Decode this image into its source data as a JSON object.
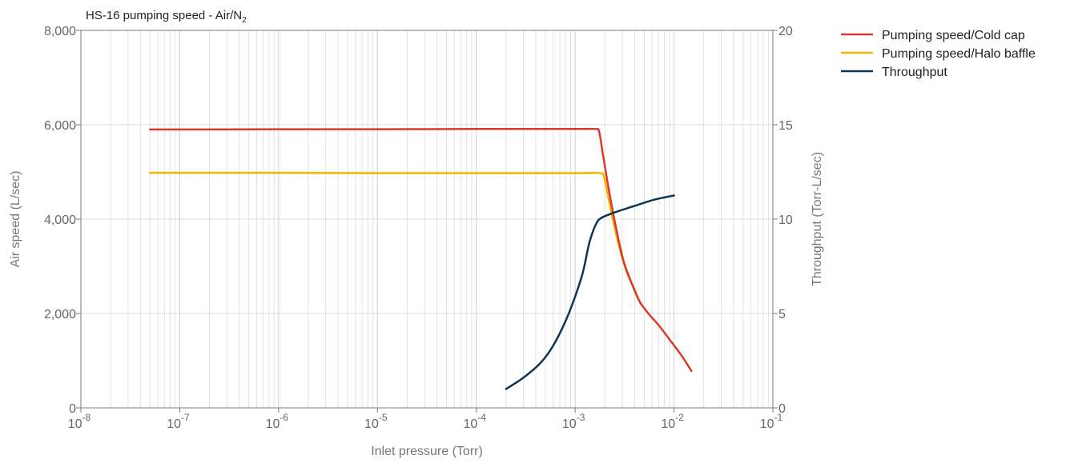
{
  "chart_data": {
    "type": "line",
    "title_main": "HS-16 pumping speed - Air/N",
    "title_subscript": "2",
    "xlabel": "Inlet pressure (Torr)",
    "ylabel": "Air speed (L/sec)",
    "y2label": "Throughput (Torr-L/sec)",
    "x_scale": "log",
    "xlim": [
      1e-08,
      0.1
    ],
    "ylim": [
      0,
      8000
    ],
    "y2lim": [
      0,
      20
    ],
    "x_ticks": [
      {
        "base": "10",
        "exp": "-8",
        "value": 1e-08
      },
      {
        "base": "10",
        "exp": "-7",
        "value": 1e-07
      },
      {
        "base": "10",
        "exp": "-6",
        "value": 1e-06
      },
      {
        "base": "10",
        "exp": "-5",
        "value": 1e-05
      },
      {
        "base": "10",
        "exp": "-4",
        "value": 0.0001
      },
      {
        "base": "10",
        "exp": "-3",
        "value": 0.001
      },
      {
        "base": "10",
        "exp": "-2",
        "value": 0.01
      },
      {
        "base": "10",
        "exp": "-1",
        "value": 0.1
      }
    ],
    "y_ticks": [
      {
        "label": "0",
        "value": 0
      },
      {
        "label": "2,000",
        "value": 2000
      },
      {
        "label": "4,000",
        "value": 4000
      },
      {
        "label": "6,000",
        "value": 6000
      },
      {
        "label": "8,000",
        "value": 8000
      }
    ],
    "y2_ticks": [
      {
        "label": "0",
        "value": 0
      },
      {
        "label": "5",
        "value": 5
      },
      {
        "label": "10",
        "value": 10
      },
      {
        "label": "15",
        "value": 15
      },
      {
        "label": "20",
        "value": 20
      }
    ],
    "grid": true,
    "legend_position": "right-top",
    "series": [
      {
        "name": "Pumping speed/Cold cap",
        "color": "#d93a2b",
        "axis": "left",
        "points": [
          [
            5e-08,
            5900
          ],
          [
            1e-07,
            5900
          ],
          [
            1e-06,
            5905
          ],
          [
            1e-05,
            5905
          ],
          [
            0.0001,
            5910
          ],
          [
            0.001,
            5910
          ],
          [
            0.0016,
            5910
          ],
          [
            0.00175,
            5850
          ],
          [
            0.0019,
            5400
          ],
          [
            0.0022,
            4600
          ],
          [
            0.0026,
            3800
          ],
          [
            0.0031,
            3100
          ],
          [
            0.0038,
            2600
          ],
          [
            0.0045,
            2250
          ],
          [
            0.0055,
            2000
          ],
          [
            0.007,
            1750
          ],
          [
            0.009,
            1450
          ],
          [
            0.012,
            1100
          ],
          [
            0.015,
            780
          ]
        ]
      },
      {
        "name": "Pumping speed/Halo baffle",
        "color": "#f5b400",
        "axis": "left",
        "points": [
          [
            5e-08,
            4980
          ],
          [
            1e-07,
            4980
          ],
          [
            1e-06,
            4980
          ],
          [
            1e-05,
            4975
          ],
          [
            0.0001,
            4975
          ],
          [
            0.001,
            4975
          ],
          [
            0.0018,
            4975
          ],
          [
            0.00195,
            4900
          ],
          [
            0.0021,
            4600
          ],
          [
            0.0024,
            4000
          ],
          [
            0.0028,
            3400
          ],
          [
            0.0033,
            2900
          ],
          [
            0.004,
            2500
          ],
          [
            0.0046,
            2200
          ]
        ]
      },
      {
        "name": "Throughput",
        "color": "#0d3557",
        "axis": "right",
        "points": [
          [
            0.0002,
            1.0
          ],
          [
            0.0003,
            1.6
          ],
          [
            0.00045,
            2.4
          ],
          [
            0.0006,
            3.3
          ],
          [
            0.0008,
            4.6
          ],
          [
            0.001,
            5.9
          ],
          [
            0.0012,
            7.2
          ],
          [
            0.0014,
            8.8
          ],
          [
            0.00165,
            9.8
          ],
          [
            0.0019,
            10.1
          ],
          [
            0.0025,
            10.35
          ],
          [
            0.004,
            10.7
          ],
          [
            0.006,
            11.0
          ],
          [
            0.008,
            11.15
          ],
          [
            0.01,
            11.25
          ]
        ]
      }
    ]
  }
}
